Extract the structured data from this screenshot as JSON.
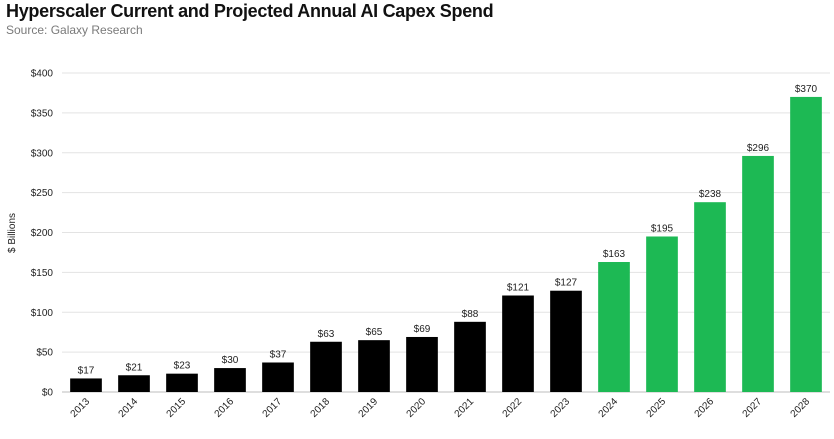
{
  "title": "Hyperscaler Current and Projected Annual AI Capex Spend",
  "subtitle": "Source: Galaxy Research",
  "colors": {
    "actual": "#000000",
    "projected": "#1db954",
    "grid": "#e3e3e3"
  },
  "chart_data": {
    "type": "bar",
    "title": "Hyperscaler Current and Projected Annual AI Capex Spend",
    "subtitle": "Source: Galaxy Research",
    "xlabel": "",
    "ylabel": "$ Billions",
    "ylim": [
      0,
      400
    ],
    "yticks": [
      0,
      50,
      100,
      150,
      200,
      250,
      300,
      350,
      400
    ],
    "ytick_labels": [
      "$0",
      "$50",
      "$100",
      "$150",
      "$200",
      "$250",
      "$300",
      "$350",
      "$400"
    ],
    "grid": true,
    "categories": [
      "2013",
      "2014",
      "2015",
      "2016",
      "2017",
      "2018",
      "2019",
      "2020",
      "2021",
      "2022",
      "2023",
      "2024",
      "2025",
      "2026",
      "2027",
      "2028"
    ],
    "values": [
      17,
      21,
      23,
      30,
      37,
      63,
      65,
      69,
      88,
      121,
      127,
      163,
      195,
      238,
      296,
      370
    ],
    "data_labels": [
      "$17",
      "$21",
      "$23",
      "$30",
      "$37",
      "$63",
      "$65",
      "$69",
      "$88",
      "$121",
      "$127",
      "$163",
      "$195",
      "$238",
      "$296",
      "$370"
    ],
    "bar_colors": [
      "#000000",
      "#000000",
      "#000000",
      "#000000",
      "#000000",
      "#000000",
      "#000000",
      "#000000",
      "#000000",
      "#000000",
      "#000000",
      "#1db954",
      "#1db954",
      "#1db954",
      "#1db954",
      "#1db954"
    ]
  }
}
